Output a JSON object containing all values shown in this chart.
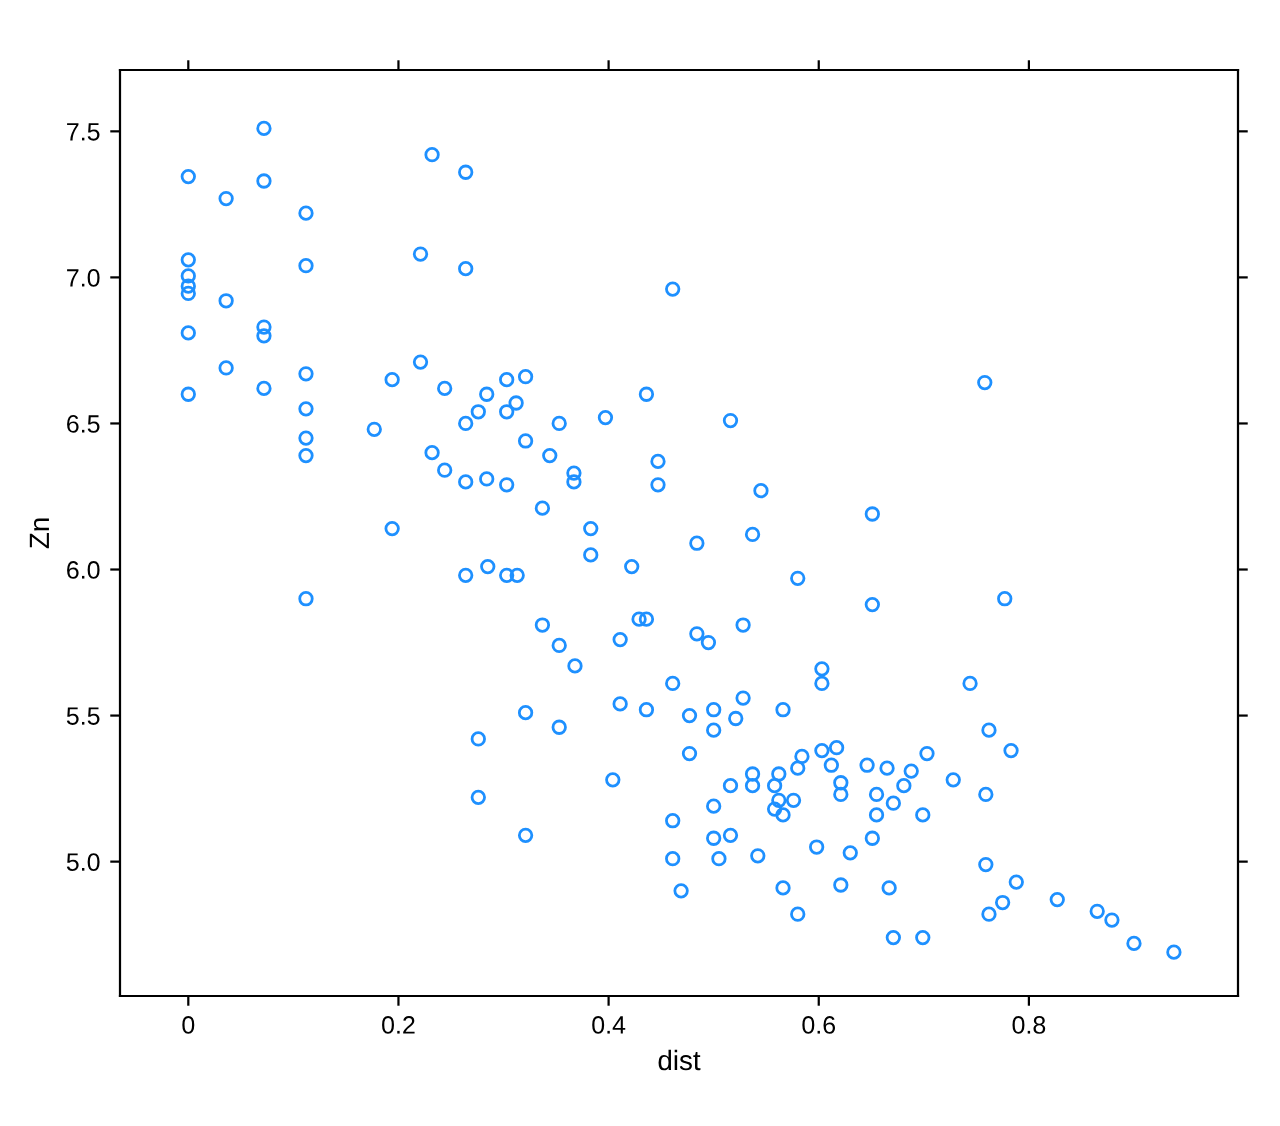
{
  "chart_data": {
    "type": "scatter",
    "xlabel": "dist",
    "ylabel": "Zn",
    "marker": "circle",
    "grid": false,
    "legend": false,
    "xlim": [
      -0.065,
      0.999
    ],
    "ylim": [
      4.54,
      7.71
    ],
    "xticks": [
      0,
      0.2,
      0.4,
      0.6,
      0.8
    ],
    "yticks": [
      {
        "value": 5,
        "label": "5.0"
      },
      5.5,
      {
        "value": 6,
        "label": "6.0"
      },
      6.5,
      {
        "value": 7,
        "label": "7.0"
      },
      7.5
    ],
    "series": [
      {
        "color": "#1e90ff",
        "x": [
          0,
          0,
          0,
          0,
          0,
          0,
          0,
          0.072,
          0.036,
          0.072,
          0.112,
          0.112,
          0.036,
          0.072,
          0.072,
          0.036,
          0.072,
          0.112,
          0.112,
          0.112,
          0.112,
          0.232,
          0.264,
          0.221,
          0.264,
          0.461,
          0.221,
          0.194,
          0.244,
          0.303,
          0.321,
          0.284,
          0.276,
          0.303,
          0.312,
          0.264,
          0.353,
          0.397,
          0.436,
          0.177,
          0.321,
          0.232,
          0.244,
          0.344,
          0.367,
          0.367,
          0.447,
          0.447,
          0.264,
          0.284,
          0.303,
          0.337,
          0.194,
          0.383,
          0.758,
          0.516,
          0.545,
          0.651,
          0.537,
          0.484,
          0.112,
          0.264,
          0.285,
          0.303,
          0.313,
          0.383,
          0.422,
          0.337,
          0.353,
          0.368,
          0.411,
          0.429,
          0.436,
          0.461,
          0.411,
          0.436,
          0.321,
          0.353,
          0.276,
          0.404,
          0.276,
          0.321,
          0.461,
          0.461,
          0.469,
          0.58,
          0.651,
          0.777,
          0.528,
          0.484,
          0.495,
          0.603,
          0.603,
          0.744,
          0.528,
          0.477,
          0.5,
          0.521,
          0.566,
          0.5,
          0.762,
          0.477,
          0.783,
          0.584,
          0.603,
          0.617,
          0.58,
          0.612,
          0.646,
          0.665,
          0.688,
          0.703,
          0.728,
          0.537,
          0.562,
          0.516,
          0.537,
          0.558,
          0.621,
          0.621,
          0.681,
          0.562,
          0.576,
          0.5,
          0.655,
          0.671,
          0.759,
          0.558,
          0.566,
          0.655,
          0.699,
          0.5,
          0.516,
          0.651,
          0.505,
          0.542,
          0.598,
          0.63,
          0.759,
          0.788,
          0.566,
          0.621,
          0.667,
          0.775,
          0.762,
          0.827,
          0.58,
          0.865,
          0.879,
          0.671,
          0.699,
          0.9,
          0.938
        ],
        "values": [
          7.345,
          7.06,
          7.005,
          6.97,
          6.945,
          6.81,
          6.6,
          7.51,
          7.27,
          7.33,
          7.22,
          7.04,
          6.92,
          6.83,
          6.8,
          6.69,
          6.62,
          6.67,
          6.55,
          6.45,
          6.39,
          7.42,
          7.36,
          7.08,
          7.03,
          6.96,
          6.71,
          6.65,
          6.62,
          6.65,
          6.66,
          6.6,
          6.54,
          6.54,
          6.57,
          6.5,
          6.5,
          6.52,
          6.6,
          6.48,
          6.44,
          6.4,
          6.34,
          6.39,
          6.33,
          6.3,
          6.37,
          6.29,
          6.3,
          6.31,
          6.29,
          6.21,
          6.14,
          6.14,
          6.64,
          6.51,
          6.27,
          6.19,
          6.12,
          6.09,
          5.9,
          5.98,
          6.01,
          5.98,
          5.98,
          6.05,
          6.01,
          5.81,
          5.74,
          5.67,
          5.76,
          5.83,
          5.83,
          5.61,
          5.54,
          5.52,
          5.51,
          5.46,
          5.42,
          5.28,
          5.22,
          5.09,
          5.14,
          5.01,
          4.9,
          5.97,
          5.88,
          5.9,
          5.81,
          5.78,
          5.75,
          5.66,
          5.61,
          5.61,
          5.56,
          5.5,
          5.52,
          5.49,
          5.52,
          5.45,
          5.45,
          5.37,
          5.38,
          5.36,
          5.38,
          5.39,
          5.32,
          5.33,
          5.33,
          5.32,
          5.31,
          5.37,
          5.28,
          5.3,
          5.3,
          5.26,
          5.26,
          5.26,
          5.27,
          5.23,
          5.26,
          5.21,
          5.21,
          5.19,
          5.23,
          5.2,
          5.23,
          5.18,
          5.16,
          5.16,
          5.16,
          5.08,
          5.09,
          5.08,
          5.01,
          5.02,
          5.05,
          5.03,
          4.99,
          4.93,
          4.91,
          4.92,
          4.91,
          4.86,
          4.82,
          4.87,
          4.82,
          4.83,
          4.8,
          4.74,
          4.74,
          4.72,
          4.69
        ]
      }
    ]
  }
}
